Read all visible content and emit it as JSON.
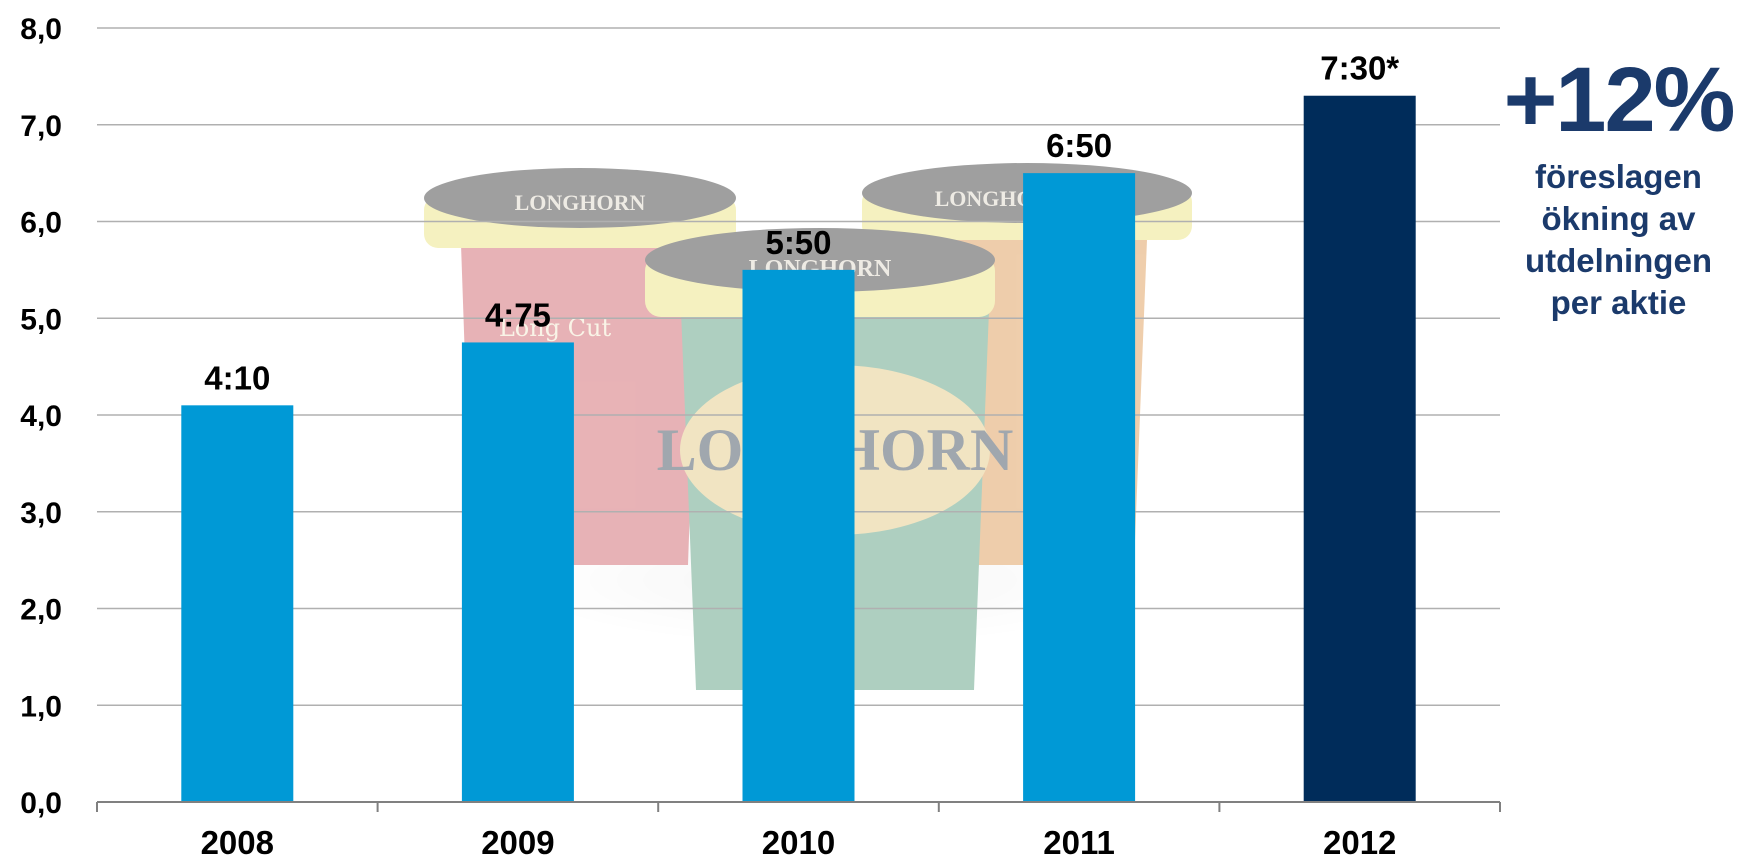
{
  "chart_data": {
    "type": "bar",
    "categories": [
      "2008",
      "2009",
      "2010",
      "2011",
      "2012"
    ],
    "values": [
      4.1,
      4.75,
      5.5,
      6.5,
      7.3
    ],
    "data_labels": [
      "4:10",
      "4:75",
      "5:50",
      "6:50",
      "7:30*"
    ],
    "y_ticks": [
      "0,0",
      "1,0",
      "2,0",
      "3,0",
      "4,0",
      "5,0",
      "6,0",
      "7,0",
      "8,0"
    ],
    "ylim": [
      0,
      8
    ],
    "grid": true,
    "bar_colors": [
      "#0099d6",
      "#0099d6",
      "#0099d6",
      "#0099d6",
      "#002c5a"
    ],
    "title": "",
    "xlabel": "",
    "ylabel": ""
  },
  "callout": {
    "big": "+12%",
    "text": "föreslagen ökning av utdelningen per aktie",
    "color": "#1b3a6b"
  },
  "background_image": "faded-longhorn-snuff-cans"
}
